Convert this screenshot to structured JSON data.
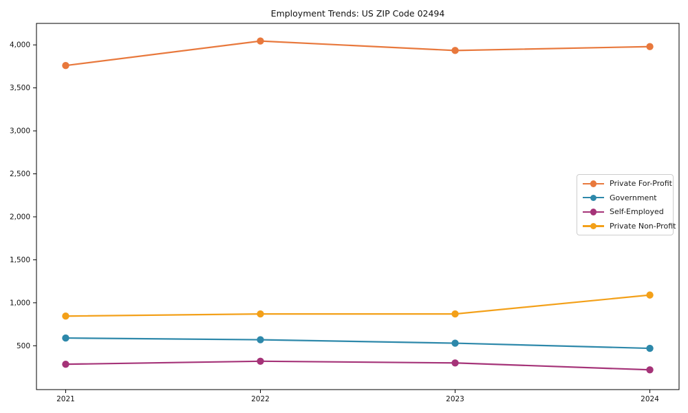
{
  "chart_data": {
    "type": "line",
    "title": "Employment Trends: US ZIP Code 02494",
    "xlabel": "",
    "ylabel": "",
    "x": [
      2021,
      2022,
      2023,
      2024
    ],
    "x_tick_labels": [
      "2021",
      "2022",
      "2023",
      "2024"
    ],
    "y_tick_values": [
      500,
      1000,
      1500,
      2000,
      2500,
      3000,
      3500,
      4000
    ],
    "y_tick_labels": [
      "500",
      "1,000",
      "1,500",
      "2,000",
      "2,500",
      "3,000",
      "3,500",
      "4,000"
    ],
    "xlim": [
      2020.85,
      2024.15
    ],
    "ylim": [
      -10,
      4250
    ],
    "grid": false,
    "legend_position": "center right",
    "series": [
      {
        "name": "Private For-Profit",
        "color": "#e8783c",
        "values": [
          3760,
          4045,
          3935,
          3980
        ]
      },
      {
        "name": "Government",
        "color": "#2d88aa",
        "values": [
          590,
          570,
          530,
          470
        ]
      },
      {
        "name": "Self-Employed",
        "color": "#a53378",
        "values": [
          285,
          320,
          300,
          220
        ]
      },
      {
        "name": "Private Non-Profit",
        "color": "#f3a019",
        "values": [
          845,
          870,
          870,
          1090
        ]
      }
    ]
  }
}
